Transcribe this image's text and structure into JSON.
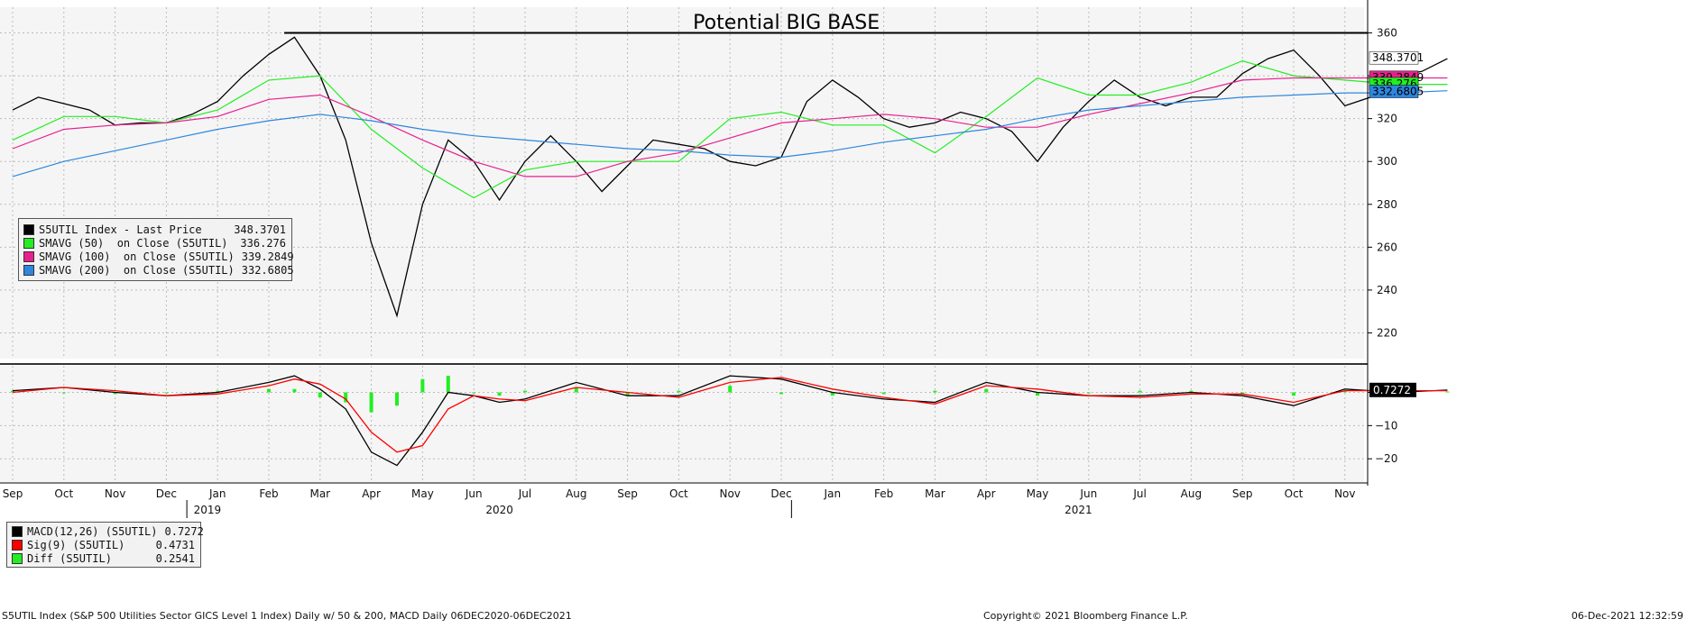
{
  "chart_data": [
    {
      "type": "line",
      "title": "Potential BIG BASE",
      "instrument": "S5UTIL Index",
      "y_ticks": [
        220,
        240,
        260,
        280,
        300,
        320,
        340,
        360
      ],
      "ylim": [
        208,
        372
      ],
      "x_month_ticks": [
        "Sep",
        "Oct",
        "Nov",
        "Dec",
        "Jan",
        "Feb",
        "Mar",
        "Apr",
        "May",
        "Jun",
        "Jul",
        "Aug",
        "Sep",
        "Oct",
        "Nov",
        "Dec",
        "Jan",
        "Feb",
        "Mar",
        "Apr",
        "May",
        "Jun",
        "Jul",
        "Aug",
        "Sep",
        "Oct",
        "Nov"
      ],
      "x_years": [
        "2019",
        "2020",
        "2021"
      ],
      "grid": true,
      "legend_position": "left",
      "annotation_line": {
        "label": "Potential BIG BASE",
        "y": 360
      },
      "price_tags": [
        {
          "label": "348.3701",
          "value": 348.3701,
          "color": "#ffffff",
          "text_color": "#000000"
        },
        {
          "label": "339.2849",
          "value": 339.2849,
          "color": "#e8208f",
          "text_color": "#000000"
        },
        {
          "label": "336.276",
          "value": 336.276,
          "color": "#22ee22",
          "text_color": "#000000"
        },
        {
          "label": "332.6805",
          "value": 332.6805,
          "color": "#2e86de",
          "text_color": "#000000"
        }
      ],
      "legend": [
        {
          "label": "S5UTIL Index - Last Price",
          "value": "348.3701",
          "color": "#000000"
        },
        {
          "label": "SMAVG (50)  on Close (S5UTIL)",
          "value": "336.276",
          "color": "#22ee22"
        },
        {
          "label": "SMAVG (100)  on Close (S5UTIL)",
          "value": "339.2849",
          "color": "#e8208f"
        },
        {
          "label": "SMAVG (200)  on Close (S5UTIL)",
          "value": "332.6805",
          "color": "#2e86de"
        }
      ],
      "series": [
        {
          "name": "S5UTIL Index - Last Price",
          "color": "#000000",
          "x": [
            0,
            0.5,
            1,
            1.5,
            2,
            2.5,
            3,
            3.5,
            4,
            4.5,
            5,
            5.5,
            6,
            6.5,
            7,
            7.5,
            8,
            8.5,
            9,
            9.5,
            10,
            10.5,
            11,
            11.5,
            12,
            12.5,
            13,
            13.5,
            14,
            14.5,
            15,
            15.5,
            16,
            16.5,
            17,
            17.5,
            18,
            18.5,
            19,
            19.5,
            20,
            20.5,
            21,
            21.5,
            22,
            22.5,
            23,
            23.5,
            24,
            24.5,
            25,
            25.5,
            26,
            26.5,
            27,
            27.5,
            28
          ],
          "values": [
            324,
            330,
            327,
            324,
            317,
            318,
            318,
            322,
            328,
            340,
            350,
            358,
            340,
            310,
            262,
            228,
            280,
            310,
            300,
            282,
            300,
            312,
            300,
            286,
            298,
            310,
            308,
            306,
            300,
            298,
            302,
            328,
            338,
            330,
            320,
            316,
            318,
            323,
            320,
            314,
            300,
            316,
            328,
            338,
            330,
            326,
            330,
            330,
            341,
            348,
            352,
            340,
            326,
            330,
            340,
            342,
            348
          ]
        },
        {
          "name": "SMAVG (50)  on Close (S5UTIL)",
          "color": "#22ee22",
          "x": [
            0,
            1,
            2,
            3,
            4,
            5,
            6,
            7,
            8,
            9,
            10,
            11,
            12,
            13,
            14,
            15,
            16,
            17,
            18,
            19,
            20,
            21,
            22,
            23,
            24,
            25,
            26,
            27,
            28
          ],
          "values": [
            310,
            321,
            321,
            318,
            324,
            338,
            340,
            315,
            297,
            283,
            296,
            300,
            300,
            300,
            320,
            323,
            317,
            317,
            304,
            321,
            339,
            331,
            331,
            337,
            347,
            340,
            338,
            336,
            336
          ]
        },
        {
          "name": "SMAVG (100)  on Close (S5UTIL)",
          "color": "#e8208f",
          "x": [
            0,
            1,
            2,
            3,
            4,
            5,
            6,
            7,
            8,
            9,
            10,
            11,
            12,
            13,
            14,
            15,
            16,
            17,
            18,
            19,
            20,
            21,
            22,
            23,
            24,
            25,
            26,
            27,
            28
          ],
          "values": [
            306,
            315,
            317,
            318,
            321,
            329,
            331,
            321,
            310,
            300,
            293,
            293,
            300,
            304,
            311,
            318,
            320,
            322,
            320,
            316,
            316,
            322,
            327,
            332,
            338,
            339,
            339,
            339,
            339
          ]
        },
        {
          "name": "SMAVG (200)  on Close (S5UTIL)",
          "color": "#2e86de",
          "x": [
            0,
            1,
            2,
            3,
            4,
            5,
            6,
            7,
            8,
            9,
            10,
            11,
            12,
            13,
            14,
            15,
            16,
            17,
            18,
            19,
            20,
            21,
            22,
            23,
            24,
            25,
            26,
            27,
            28
          ],
          "values": [
            293,
            300,
            305,
            310,
            315,
            319,
            322,
            319,
            315,
            312,
            310,
            308,
            306,
            305,
            303,
            302,
            305,
            309,
            312,
            315,
            320,
            324,
            326,
            328,
            330,
            331,
            332,
            332,
            333
          ]
        }
      ]
    },
    {
      "type": "line",
      "instrument": "MACD",
      "y_ticks": [
        -20,
        -10,
        0
      ],
      "ylim": [
        -27,
        8
      ],
      "value_tag": "0.7272",
      "legend_position": "bottom-left",
      "legend": [
        {
          "label": "MACD(12,26) (S5UTIL)",
          "value": "0.7272",
          "color": "#000000"
        },
        {
          "label": "Sig(9) (S5UTIL)",
          "value": "0.4731",
          "color": "#ff0000"
        },
        {
          "label": "Diff (S5UTIL)",
          "value": "0.2541",
          "color": "#22ee22"
        }
      ],
      "series": [
        {
          "name": "MACD(12,26) (S5UTIL)",
          "color": "#000000",
          "x": [
            0,
            1,
            2,
            3,
            4,
            5,
            5.5,
            6,
            6.5,
            7,
            7.5,
            8,
            8.5,
            9,
            9.5,
            10,
            11,
            12,
            13,
            14,
            15,
            16,
            17,
            18,
            19,
            20,
            21,
            22,
            23,
            24,
            25,
            26,
            27,
            28
          ],
          "values": [
            0.5,
            1.5,
            0,
            -1,
            0,
            3,
            5,
            1,
            -5,
            -18,
            -22,
            -12,
            0,
            -1,
            -3,
            -2,
            3,
            -1,
            -1,
            5,
            4,
            0,
            -2,
            -3,
            3,
            0,
            -1,
            -1,
            0,
            -1,
            -4,
            1,
            0,
            0.7
          ]
        },
        {
          "name": "Sig(9) (S5UTIL)",
          "color": "#ff0000",
          "x": [
            0,
            1,
            2,
            3,
            4,
            5,
            5.5,
            6,
            6.5,
            7,
            7.5,
            8,
            8.5,
            9,
            9.5,
            10,
            11,
            12,
            13,
            14,
            15,
            16,
            17,
            18,
            19,
            20,
            21,
            22,
            23,
            24,
            25,
            26,
            27,
            28
          ],
          "values": [
            0,
            1.5,
            0.5,
            -1,
            -0.5,
            2,
            4,
            2.5,
            -2,
            -12,
            -18,
            -16,
            -5,
            -1,
            -2,
            -2.5,
            1.5,
            0,
            -1.5,
            3,
            4.5,
            1,
            -1.5,
            -3.5,
            2,
            1,
            -1,
            -1.5,
            -0.5,
            -0.5,
            -3,
            0.5,
            0.5,
            0.5
          ]
        },
        {
          "name": "Diff (S5UTIL)",
          "color": "#22ee22",
          "x": [
            0,
            1,
            2,
            3,
            4,
            5,
            5.5,
            6,
            6.5,
            7,
            7.5,
            8,
            8.5,
            9,
            9.5,
            10,
            11,
            12,
            13,
            14,
            15,
            16,
            17,
            18,
            19,
            20,
            21,
            22,
            23,
            24,
            25,
            26,
            27,
            28
          ],
          "values": [
            0.5,
            0,
            -0.5,
            0,
            0.5,
            1,
            1,
            -1.5,
            -3,
            -6,
            -4,
            4,
            5,
            0,
            -1,
            0.5,
            1.5,
            -1,
            0.5,
            2,
            -0.5,
            -1,
            -0.5,
            0.5,
            1,
            -1,
            0,
            0.5,
            0.5,
            -0.5,
            -1,
            0.5,
            -0.5,
            0.25
          ]
        }
      ]
    }
  ],
  "footer": {
    "left": "S5UTIL Index (S&P 500 Utilities Sector GICS Level 1 Index) Daily w/ 50 & 200, MACD  Daily 06DEC2020-06DEC2021",
    "middle": "Copyright© 2021 Bloomberg Finance L.P.",
    "right": "06-Dec-2021 12:32:59"
  }
}
